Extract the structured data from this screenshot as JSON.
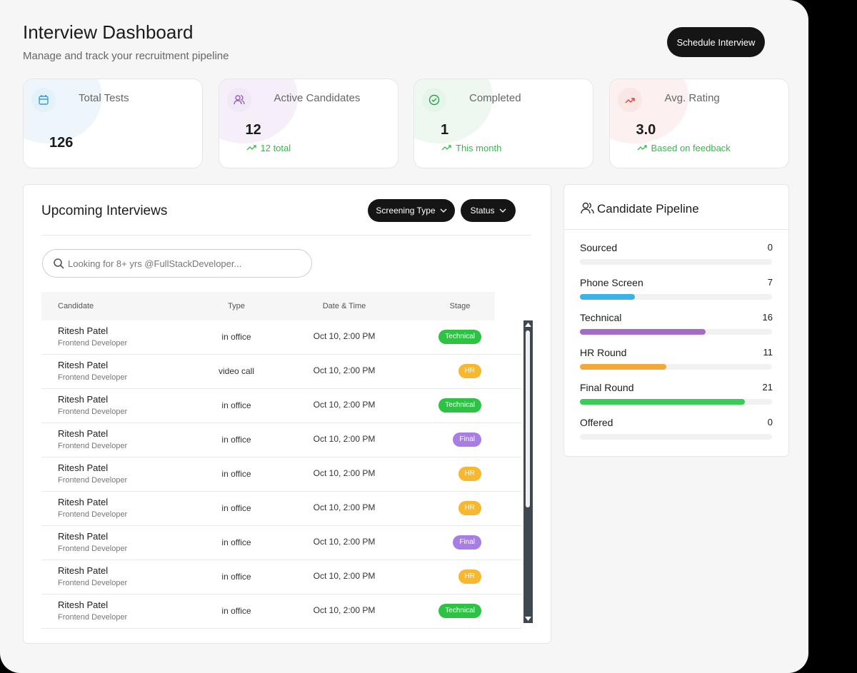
{
  "header": {
    "title": "Interview Dashboard",
    "subtitle": "Manage and track your recruitment pipeline",
    "button": "Schedule Interview"
  },
  "stats": [
    {
      "label": "Total Tests",
      "value": "126"
    },
    {
      "label": "Active Candidates",
      "value": "12",
      "note": "12 total"
    },
    {
      "label": "Completed",
      "value": "1",
      "note": "This month"
    },
    {
      "label": "Avg. Rating",
      "value": "3.0",
      "note": "Based on feedback"
    }
  ],
  "interviews": {
    "title": "Upcoming Interviews",
    "filters": [
      "Screening Type",
      "Status"
    ],
    "search_placeholder": "Looking for 8+ yrs @FullStackDeveloper...",
    "columns": [
      "Candidate",
      "Type",
      "Date & Time",
      "Stage"
    ],
    "rows": [
      {
        "name": "Ritesh Patel",
        "role": "Frontend Developer",
        "type": "in office",
        "date": "Oct 10, 2:00 PM",
        "stage": "Technical",
        "stage_color": "#2ec244"
      },
      {
        "name": "Ritesh Patel",
        "role": "Frontend Developer",
        "type": "video call",
        "date": "Oct 10, 2:00 PM",
        "stage": "HR",
        "stage_color": "#f6b731"
      },
      {
        "name": "Ritesh Patel",
        "role": "Frontend Developer",
        "type": "in office",
        "date": "Oct 10, 2:00 PM",
        "stage": "Technical",
        "stage_color": "#2ec244"
      },
      {
        "name": "Ritesh Patel",
        "role": "Frontend Developer",
        "type": "in office",
        "date": "Oct 10, 2:00 PM",
        "stage": "Final",
        "stage_color": "#a97ee3"
      },
      {
        "name": "Ritesh Patel",
        "role": "Frontend Developer",
        "type": "in office",
        "date": "Oct 10, 2:00 PM",
        "stage": "HR",
        "stage_color": "#f6b731"
      },
      {
        "name": "Ritesh Patel",
        "role": "Frontend Developer",
        "type": "in office",
        "date": "Oct 10, 2:00 PM",
        "stage": "HR",
        "stage_color": "#f6b731"
      },
      {
        "name": "Ritesh Patel",
        "role": "Frontend Developer",
        "type": "in office",
        "date": "Oct 10, 2:00 PM",
        "stage": "Final",
        "stage_color": "#a97ee3"
      },
      {
        "name": "Ritesh Patel",
        "role": "Frontend Developer",
        "type": "in office",
        "date": "Oct 10, 2:00 PM",
        "stage": "HR",
        "stage_color": "#f6b731"
      },
      {
        "name": "Ritesh Patel",
        "role": "Frontend Developer",
        "type": "in office",
        "date": "Oct 10, 2:00 PM",
        "stage": "Technical",
        "stage_color": "#2ec244"
      }
    ]
  },
  "pipeline": {
    "title": "Candidate Pipeline",
    "stages": [
      {
        "name": "Sourced",
        "value": 0,
        "color": "#cccccc"
      },
      {
        "name": "Phone Screen",
        "value": 7,
        "color": "#3db1e6"
      },
      {
        "name": "Technical",
        "value": 16,
        "color": "#a66bc4"
      },
      {
        "name": "HR Round",
        "value": 11,
        "color": "#f3a93a"
      },
      {
        "name": "Final Round",
        "value": 21,
        "color": "#3ccb58"
      },
      {
        "name": "Offered",
        "value": 0,
        "color": "#cccccc"
      }
    ]
  }
}
